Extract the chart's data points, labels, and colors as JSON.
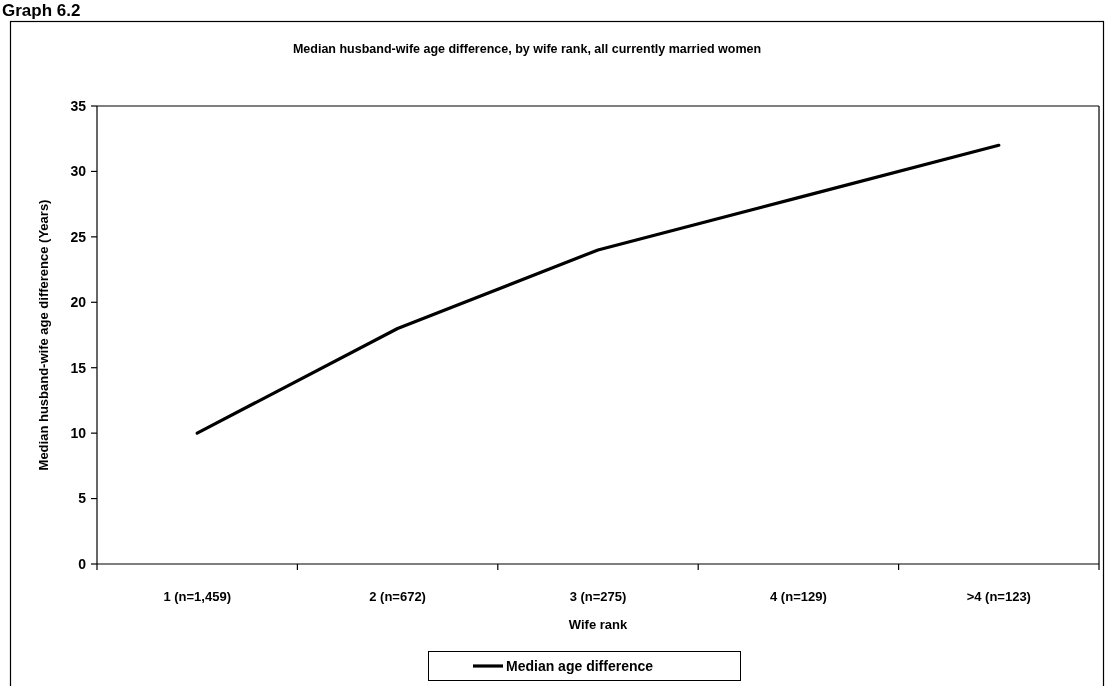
{
  "chart_data": {
    "type": "line",
    "title": "Median husband-wife age difference, by wife rank, all currently married women",
    "xlabel": "Wife rank",
    "ylabel": "Median husband-wife age difference (Years)",
    "annotations": [
      "Graph 6.2"
    ],
    "categories": [
      "1 (n=1,459)",
      "2 (n=672)",
      "3 (n=275)",
      "4 (n=129)",
      ">4 (n=123)"
    ],
    "series": [
      {
        "name": "Median age difference",
        "color": "#000000",
        "values": [
          10,
          18,
          24,
          28,
          32
        ]
      }
    ],
    "ylim": [
      0,
      35
    ],
    "yticks": [
      0,
      5,
      10,
      15,
      20,
      25,
      30,
      35
    ],
    "legend": "bottom",
    "marker": "none",
    "line_style": "solid"
  }
}
